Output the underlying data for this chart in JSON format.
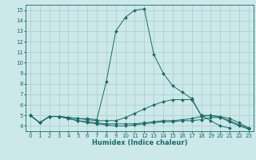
{
  "xlabel": "Humidex (Indice chaleur)",
  "bg_color": "#cce8e8",
  "line_color": "#1a6b6b",
  "grid_color": "#aacccc",
  "xlim": [
    -0.5,
    23.5
  ],
  "ylim": [
    3.5,
    15.5
  ],
  "xticks": [
    0,
    1,
    2,
    3,
    4,
    5,
    6,
    7,
    8,
    9,
    10,
    11,
    12,
    13,
    14,
    15,
    16,
    17,
    18,
    19,
    20,
    21,
    22,
    23
  ],
  "yticks": [
    4,
    5,
    6,
    7,
    8,
    9,
    10,
    11,
    12,
    13,
    14,
    15
  ],
  "curves": [
    {
      "x": [
        0,
        1,
        2,
        3,
        4,
        5,
        6,
        7,
        8,
        9,
        10,
        11,
        12,
        13,
        14,
        15,
        16,
        17,
        18,
        19,
        20,
        21
      ],
      "y": [
        5.0,
        4.3,
        4.9,
        4.9,
        4.8,
        4.7,
        4.7,
        4.6,
        8.2,
        13.0,
        14.3,
        15.0,
        15.1,
        10.8,
        9.0,
        7.8,
        7.2,
        6.6,
        5.0,
        4.5,
        4.0,
        3.8
      ]
    },
    {
      "x": [
        0,
        1,
        2,
        3,
        4,
        5,
        6,
        7,
        8,
        9,
        10,
        11,
        12,
        13,
        14,
        15,
        16,
        17,
        18,
        19,
        20,
        21,
        22,
        23
      ],
      "y": [
        5.0,
        4.3,
        4.9,
        4.9,
        4.8,
        4.7,
        4.6,
        4.5,
        4.5,
        4.5,
        4.8,
        5.2,
        5.6,
        6.0,
        6.3,
        6.5,
        6.5,
        6.5,
        5.0,
        5.0,
        4.9,
        4.7,
        4.3,
        3.8
      ]
    },
    {
      "x": [
        0,
        1,
        2,
        3,
        4,
        5,
        6,
        7,
        8,
        9,
        10,
        11,
        12,
        13,
        14,
        15,
        16,
        17,
        18,
        19,
        20,
        21,
        22,
        23
      ],
      "y": [
        5.0,
        4.3,
        4.9,
        4.9,
        4.7,
        4.5,
        4.4,
        4.3,
        4.2,
        4.2,
        4.2,
        4.2,
        4.3,
        4.4,
        4.5,
        4.5,
        4.6,
        4.7,
        4.9,
        5.0,
        4.8,
        4.5,
        4.1,
        3.8
      ]
    },
    {
      "x": [
        0,
        1,
        2,
        3,
        4,
        5,
        6,
        7,
        8,
        9,
        10,
        11,
        12,
        13,
        14,
        15,
        16,
        17,
        18,
        19,
        20,
        21,
        22,
        23
      ],
      "y": [
        5.0,
        4.3,
        4.9,
        4.9,
        4.7,
        4.5,
        4.3,
        4.2,
        4.1,
        4.0,
        4.0,
        4.1,
        4.2,
        4.3,
        4.4,
        4.4,
        4.5,
        4.5,
        4.6,
        4.8,
        4.8,
        4.4,
        4.0,
        3.7
      ]
    }
  ]
}
